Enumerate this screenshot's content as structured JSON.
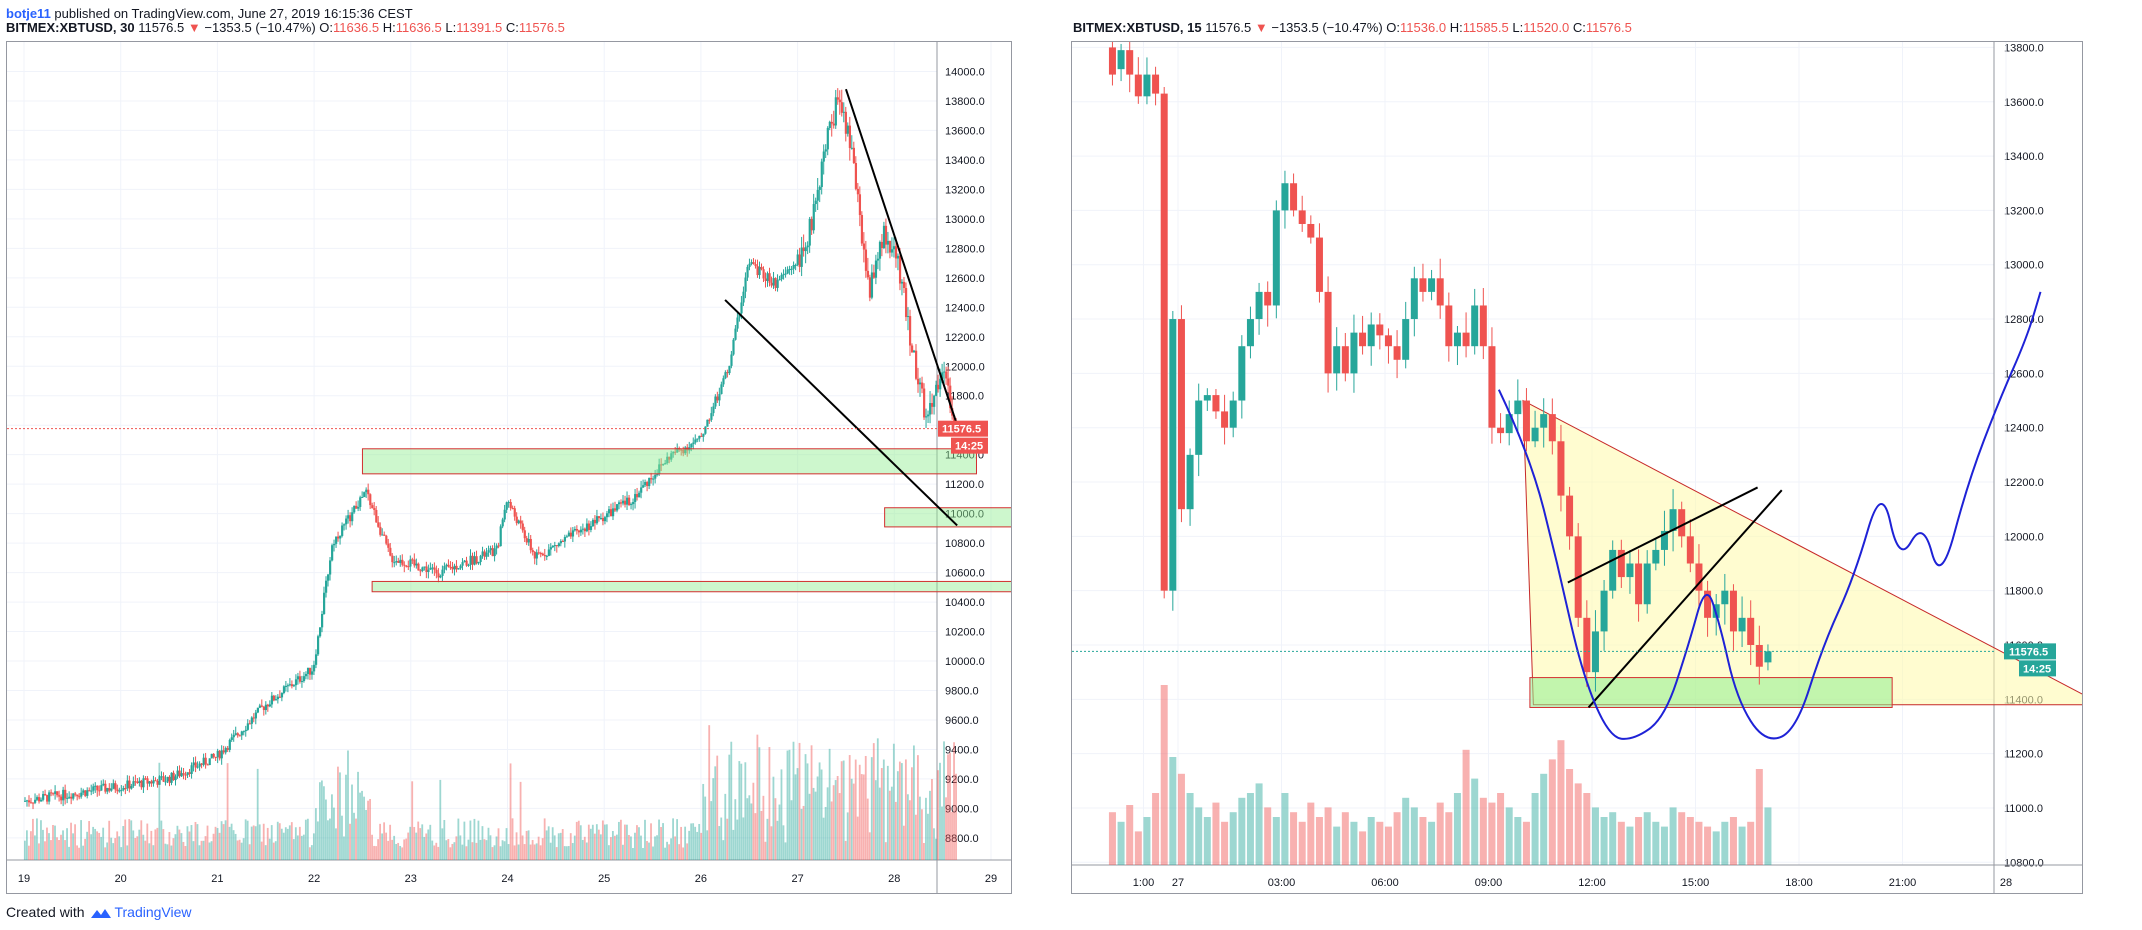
{
  "header": {
    "author": "botje11",
    "published": "published on TradingView.com, June 27, 2019 16:15:36 CEST"
  },
  "footer": {
    "created_with": "Created with",
    "brand": "TradingView"
  },
  "chart_data": [
    {
      "type": "candlestick",
      "title": "BITMEX:XBTUSD, 30",
      "legend": {
        "symbol": "BITMEX:XBTUSD, 30",
        "last": "11576.5",
        "change": "−1353.5 (−10.47%)",
        "open_label": "O:",
        "open": "11636.5",
        "high_label": "H:",
        "high": "11636.5",
        "low_label": "L:",
        "low": "11391.5",
        "close_label": "C:",
        "close": "11576.5"
      },
      "price_axis": [
        14000,
        13800,
        13600,
        13400,
        13200,
        13000,
        12800,
        12600,
        12400,
        12200,
        12000,
        11800,
        11600,
        11400,
        11200,
        11000,
        10800,
        10600,
        10400,
        10200,
        10000,
        9800,
        9600,
        9400,
        9200,
        9000,
        8800
      ],
      "price_axis_labels": [
        "14000.0",
        "13800.0",
        "13600.0",
        "13400.0",
        "13200.0",
        "13000.0",
        "12800.0",
        "12600.0",
        "12400.0",
        "12200.0",
        "12000.0",
        "11800.0",
        "11600.0",
        "11400.0",
        "11200.0",
        "11000.0",
        "10800.0",
        "10600.0",
        "10400.0",
        "10200.0",
        "10000.0",
        "9800.0",
        "9600.0",
        "9400.0",
        "9200.0",
        "9000.0",
        "8800.0"
      ],
      "ylim": [
        8650,
        14200
      ],
      "x_ticks": [
        "19",
        "20",
        "21",
        "22",
        "23",
        "24",
        "25",
        "26",
        "27",
        "28",
        "29"
      ],
      "price_path_keypoints": [
        {
          "t": 0,
          "p": 9050
        },
        {
          "t": 1,
          "p": 9150
        },
        {
          "t": 1.5,
          "p": 9200
        },
        {
          "t": 2,
          "p": 9350
        },
        {
          "t": 2.5,
          "p": 9700
        },
        {
          "t": 3,
          "p": 9950
        },
        {
          "t": 3.2,
          "p": 10800
        },
        {
          "t": 3.55,
          "p": 11150
        },
        {
          "t": 3.8,
          "p": 10700
        },
        {
          "t": 4.3,
          "p": 10600
        },
        {
          "t": 4.9,
          "p": 10750
        },
        {
          "t": 5,
          "p": 11100
        },
        {
          "t": 5.3,
          "p": 10700
        },
        {
          "t": 5.8,
          "p": 10900
        },
        {
          "t": 6.3,
          "p": 11100
        },
        {
          "t": 6.7,
          "p": 11400
        },
        {
          "t": 7,
          "p": 11500
        },
        {
          "t": 7.3,
          "p": 12000
        },
        {
          "t": 7.5,
          "p": 12700
        },
        {
          "t": 7.8,
          "p": 12550
        },
        {
          "t": 8.1,
          "p": 12800
        },
        {
          "t": 8.3,
          "p": 13500
        },
        {
          "t": 8.45,
          "p": 13860
        },
        {
          "t": 8.6,
          "p": 13300
        },
        {
          "t": 8.75,
          "p": 12500
        },
        {
          "t": 8.9,
          "p": 12900
        },
        {
          "t": 9.05,
          "p": 12700
        },
        {
          "t": 9.2,
          "p": 12100
        },
        {
          "t": 9.35,
          "p": 11600
        },
        {
          "t": 9.5,
          "p": 12000
        },
        {
          "t": 9.65,
          "p": 11577
        }
      ],
      "current_price": "11576.5",
      "countdown": "14:25",
      "zones": [
        {
          "t1": 3.5,
          "t2": 9.85,
          "p1": 11440,
          "p2": 11270
        },
        {
          "t1": 8.9,
          "t2": 10.6,
          "p1": 11040,
          "p2": 10910
        },
        {
          "t1": 3.6,
          "t2": 10.6,
          "p1": 10540,
          "p2": 10470
        }
      ],
      "trendlines": [
        {
          "t1": 8.5,
          "p1": 13880,
          "t2": 9.65,
          "p2": 11600
        },
        {
          "t1": 7.25,
          "p1": 12450,
          "t2": 9.65,
          "p2": 10920
        }
      ]
    },
    {
      "type": "candlestick",
      "title": "BITMEX:XBTUSD, 15",
      "legend": {
        "symbol": "BITMEX:XBTUSD, 15",
        "last": "11576.5",
        "change": "−1353.5 (−10.47%)",
        "open_label": "O:",
        "open": "11536.0",
        "high_label": "H:",
        "high": "11585.5",
        "low_label": "L:",
        "low": "11520.0",
        "close_label": "C:",
        "close": "11576.5"
      },
      "price_axis": [
        13800,
        13600,
        13400,
        13200,
        13000,
        12800,
        12600,
        12400,
        12200,
        12000,
        11800,
        11600,
        11400,
        11200,
        11000,
        10800
      ],
      "price_axis_labels": [
        "13800.0",
        "13600.0",
        "13400.0",
        "13200.0",
        "13000.0",
        "12800.0",
        "12600.0",
        "12400.0",
        "12200.0",
        "12000.0",
        "11800.0",
        "11600.0",
        "11400.0",
        "11200.0",
        "11000.0",
        "10800.0"
      ],
      "ylim": [
        10790,
        13820
      ],
      "x_ticks": [
        "1:00",
        "27",
        "03:00",
        "06:00",
        "09:00",
        "12:00",
        "15:00",
        "18:00",
        "21:00",
        "28"
      ],
      "x_tick_hours": [
        -1,
        0,
        3,
        6,
        9,
        12,
        15,
        18,
        21,
        24
      ],
      "candles": [
        {
          "o": 13800,
          "c": 13700
        },
        {
          "o": 13720,
          "c": 13790
        },
        {
          "o": 13790,
          "c": 13700
        },
        {
          "o": 13700,
          "c": 13620
        },
        {
          "o": 13620,
          "c": 13700
        },
        {
          "o": 13700,
          "c": 13630
        },
        {
          "o": 13630,
          "c": 11800
        },
        {
          "o": 11800,
          "c": 12800
        },
        {
          "o": 12800,
          "c": 12100
        },
        {
          "o": 12100,
          "c": 12300
        },
        {
          "o": 12300,
          "c": 12500
        },
        {
          "o": 12500,
          "c": 12520
        },
        {
          "o": 12520,
          "c": 12460
        },
        {
          "o": 12460,
          "c": 12400
        },
        {
          "o": 12400,
          "c": 12500
        },
        {
          "o": 12500,
          "c": 12700
        },
        {
          "o": 12700,
          "c": 12800
        },
        {
          "o": 12800,
          "c": 12900
        },
        {
          "o": 12900,
          "c": 12850
        },
        {
          "o": 12850,
          "c": 13200
        },
        {
          "o": 13200,
          "c": 13300
        },
        {
          "o": 13300,
          "c": 13200
        },
        {
          "o": 13200,
          "c": 13150
        },
        {
          "o": 13150,
          "c": 13100
        },
        {
          "o": 13100,
          "c": 12900
        },
        {
          "o": 12900,
          "c": 12600
        },
        {
          "o": 12600,
          "c": 12700
        },
        {
          "o": 12700,
          "c": 12600
        },
        {
          "o": 12600,
          "c": 12750
        },
        {
          "o": 12750,
          "c": 12700
        },
        {
          "o": 12700,
          "c": 12780
        },
        {
          "o": 12780,
          "c": 12740
        },
        {
          "o": 12740,
          "c": 12700
        },
        {
          "o": 12700,
          "c": 12650
        },
        {
          "o": 12650,
          "c": 12800
        },
        {
          "o": 12800,
          "c": 12950
        },
        {
          "o": 12950,
          "c": 12900
        },
        {
          "o": 12900,
          "c": 12950
        },
        {
          "o": 12950,
          "c": 12850
        },
        {
          "o": 12850,
          "c": 12700
        },
        {
          "o": 12700,
          "c": 12750
        },
        {
          "o": 12750,
          "c": 12700
        },
        {
          "o": 12700,
          "c": 12850
        },
        {
          "o": 12850,
          "c": 12700
        },
        {
          "o": 12700,
          "c": 12400
        },
        {
          "o": 12400,
          "c": 12380
        },
        {
          "o": 12380,
          "c": 12450
        },
        {
          "o": 12450,
          "c": 12500
        },
        {
          "o": 12500,
          "c": 12350
        },
        {
          "o": 12350,
          "c": 12400
        },
        {
          "o": 12400,
          "c": 12450
        },
        {
          "o": 12450,
          "c": 12350
        },
        {
          "o": 12350,
          "c": 12150
        },
        {
          "o": 12150,
          "c": 12000
        },
        {
          "o": 12000,
          "c": 11700
        },
        {
          "o": 11700,
          "c": 11500
        },
        {
          "o": 11500,
          "c": 11650
        },
        {
          "o": 11650,
          "c": 11800
        },
        {
          "o": 11800,
          "c": 11950
        },
        {
          "o": 11950,
          "c": 11850
        },
        {
          "o": 11850,
          "c": 11900
        },
        {
          "o": 11900,
          "c": 11750
        },
        {
          "o": 11750,
          "c": 11900
        },
        {
          "o": 11900,
          "c": 11950
        },
        {
          "o": 11950,
          "c": 12020
        },
        {
          "o": 12020,
          "c": 12100
        },
        {
          "o": 12100,
          "c": 12000
        },
        {
          "o": 12000,
          "c": 11900
        },
        {
          "o": 11900,
          "c": 11800
        },
        {
          "o": 11800,
          "c": 11700
        },
        {
          "o": 11700,
          "c": 11750
        },
        {
          "o": 11750,
          "c": 11800
        },
        {
          "o": 11800,
          "c": 11650
        },
        {
          "o": 11650,
          "c": 11700
        },
        {
          "o": 11700,
          "c": 11600
        },
        {
          "o": 11600,
          "c": 11520
        },
        {
          "o": 11536,
          "c": 11576.5
        }
      ],
      "volumes": [
        22,
        18,
        25,
        14,
        20,
        30,
        75,
        45,
        38,
        30,
        24,
        20,
        26,
        18,
        22,
        28,
        30,
        34,
        24,
        20,
        30,
        22,
        18,
        26,
        20,
        24,
        16,
        22,
        18,
        14,
        20,
        18,
        16,
        22,
        28,
        24,
        20,
        18,
        26,
        22,
        30,
        48,
        36,
        28,
        26,
        30,
        24,
        20,
        18,
        30,
        38,
        44,
        52,
        40,
        34,
        30,
        24,
        20,
        22,
        18,
        16,
        20,
        22,
        18,
        16,
        24,
        22,
        20,
        18,
        16,
        14,
        18,
        20,
        16,
        18,
        40,
        24
      ],
      "current_price": "11576.5",
      "countdown": "14:25",
      "zones": [
        {
          "h1": 10.2,
          "h2": 20.7,
          "p1": 11480,
          "p2": 11370
        }
      ],
      "triangle": [
        {
          "h": 10.0,
          "p": 12500
        },
        {
          "h": 26.8,
          "p": 11380
        },
        {
          "h": 10.3,
          "p": 11380
        }
      ],
      "trendlines": [
        {
          "h1": 11.3,
          "p1": 11830,
          "h2": 16.8,
          "p2": 12180
        },
        {
          "h1": 11.9,
          "p1": 11370,
          "h2": 17.5,
          "p2": 12170
        }
      ],
      "projection": [
        {
          "h": 9.3,
          "p": 12540
        },
        {
          "h": 10.2,
          "p": 12300
        },
        {
          "h": 11.0,
          "p": 11900
        },
        {
          "h": 11.7,
          "p": 11500
        },
        {
          "h": 12.5,
          "p": 11260
        },
        {
          "h": 13.2,
          "p": 11250
        },
        {
          "h": 14.1,
          "p": 11330
        },
        {
          "h": 14.8,
          "p": 11600
        },
        {
          "h": 15.3,
          "p": 11830
        },
        {
          "h": 15.7,
          "p": 11680
        },
        {
          "h": 16.2,
          "p": 11400
        },
        {
          "h": 17.0,
          "p": 11240
        },
        {
          "h": 17.9,
          "p": 11280
        },
        {
          "h": 18.7,
          "p": 11600
        },
        {
          "h": 19.6,
          "p": 11850
        },
        {
          "h": 20.4,
          "p": 12200
        },
        {
          "h": 20.9,
          "p": 11900
        },
        {
          "h": 21.6,
          "p": 12060
        },
        {
          "h": 22.1,
          "p": 11820
        },
        {
          "h": 22.9,
          "p": 12200
        },
        {
          "h": 23.8,
          "p": 12500
        },
        {
          "h": 24.6,
          "p": 12730
        },
        {
          "h": 25.0,
          "p": 12900
        }
      ]
    }
  ]
}
